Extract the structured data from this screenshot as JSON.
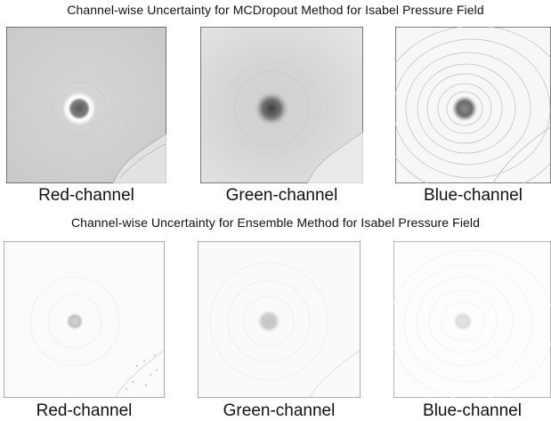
{
  "section1": {
    "title": "Channel-wise Uncertainty for MCDropout Method for Isabel Pressure Field",
    "panels": [
      {
        "caption": "Red-channel"
      },
      {
        "caption": "Green-channel"
      },
      {
        "caption": "Blue-channel"
      }
    ]
  },
  "section2": {
    "title": "Channel-wise Uncertainty for Ensemble Method for Isabel Pressure Field",
    "panels": [
      {
        "caption": "Red-channel"
      },
      {
        "caption": "Green-channel"
      },
      {
        "caption": "Blue-channel"
      }
    ]
  },
  "colors": {
    "background": "#ffffff",
    "text": "#111111",
    "frame": "#555555"
  }
}
